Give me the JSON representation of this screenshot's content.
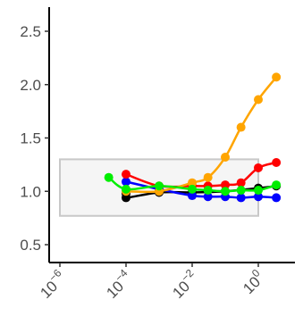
{
  "chart_data": {
    "type": "line",
    "title": "",
    "xlabel": "",
    "ylabel": "",
    "x_scale": "log10",
    "xlim": [
      1e-06,
      4.5
    ],
    "ylim": [
      0.37,
      2.72
    ],
    "grid": false,
    "x_ticks": [
      {
        "value": 1e-06,
        "base": "10",
        "exp": "-6"
      },
      {
        "value": 0.0001,
        "base": "10",
        "exp": "-4"
      },
      {
        "value": 0.01,
        "base": "10",
        "exp": "-2"
      },
      {
        "value": 1,
        "base": "10",
        "exp": "0"
      }
    ],
    "y_ticks": [
      {
        "value": 0.5,
        "label": "0.5"
      },
      {
        "value": 1.0,
        "label": "1.0"
      },
      {
        "value": 1.5,
        "label": "1.5"
      },
      {
        "value": 2.0,
        "label": "2.0"
      },
      {
        "value": 2.5,
        "label": "2.5"
      }
    ],
    "reference_box": {
      "x_range": [
        1e-06,
        1
      ],
      "y_range": [
        0.77,
        1.3
      ],
      "fill": "#f5f5f5",
      "stroke": "#c8c8c8"
    },
    "series": [
      {
        "color": "#000000",
        "x": [
          0.0001,
          0.0001,
          0.001,
          0.01,
          0.1,
          1,
          3.5
        ],
        "y": [
          0.98,
          0.94,
          0.99,
          0.99,
          1.0,
          1.03,
          1.05
        ]
      },
      {
        "color": "#0000ff",
        "x": [
          0.0001,
          0.001,
          0.01,
          0.03,
          0.1,
          0.3,
          1,
          3.5
        ],
        "y": [
          1.09,
          1.02,
          0.96,
          0.95,
          0.95,
          0.94,
          0.95,
          0.94
        ]
      },
      {
        "color": "#ff0000",
        "x": [
          0.0001,
          0.001,
          0.01,
          0.03,
          0.1,
          0.3,
          1,
          3.5
        ],
        "y": [
          1.16,
          1.05,
          1.05,
          1.05,
          1.06,
          1.08,
          1.22,
          1.27
        ]
      },
      {
        "color": "#ffa500",
        "x": [
          0.0001,
          0.001,
          0.01,
          0.03,
          0.1,
          0.3,
          1,
          3.5
        ],
        "y": [
          1.0,
          1.0,
          1.08,
          1.13,
          1.32,
          1.6,
          1.86,
          2.07
        ]
      },
      {
        "color": "#00ee00",
        "x": [
          3e-05,
          0.0001,
          0.001,
          0.01,
          0.03,
          0.1,
          0.3,
          1,
          3.5
        ],
        "y": [
          1.13,
          1.02,
          1.05,
          1.02,
          1.01,
          1.0,
          1.01,
          1.01,
          1.06
        ]
      }
    ]
  }
}
